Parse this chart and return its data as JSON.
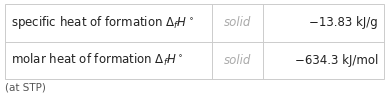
{
  "rows": [
    [
      "specific heat of formation $\\Delta_f H^\\circ$",
      "solid",
      "−13.83 kJ/g"
    ],
    [
      "molar heat of formation $\\Delta_f H^\\circ$",
      "solid",
      "−634.3 kJ/mol"
    ]
  ],
  "footer": "(at STP)",
  "border_color": "#cccccc",
  "text_color_col0": "#222222",
  "text_color_col1": "#aaaaaa",
  "text_color_col2": "#222222",
  "footer_color": "#555555",
  "fontsize": 8.5,
  "footer_fontsize": 7.5,
  "fig_width": 3.89,
  "fig_height": 0.97,
  "dpi": 100
}
